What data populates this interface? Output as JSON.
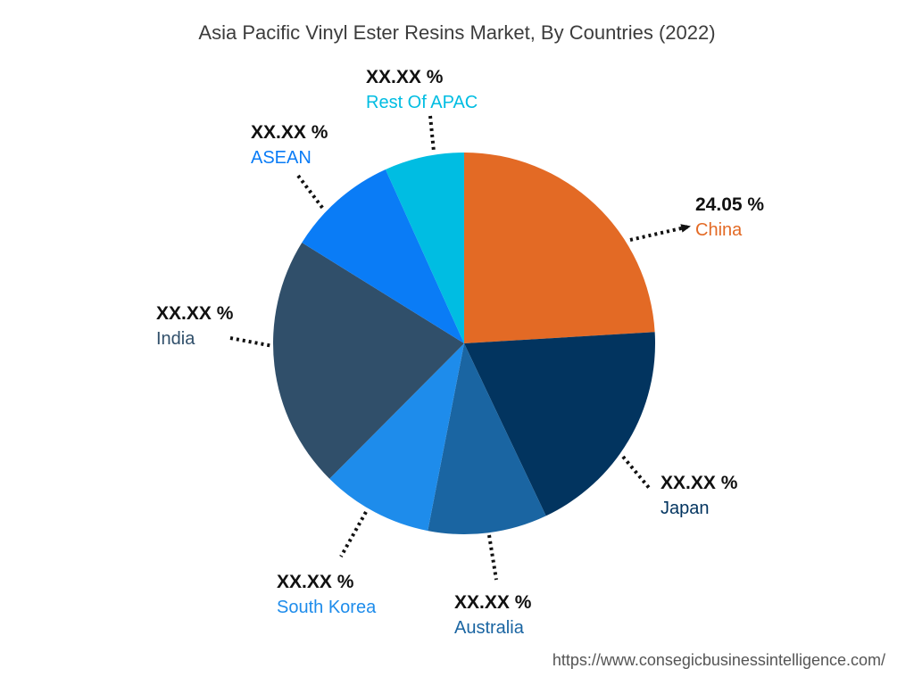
{
  "chart_data": {
    "type": "pie",
    "title": "Asia Pacific Vinyl Ester Resins Market, By Countries (2022)",
    "slices": [
      {
        "label": "China",
        "value": 24.05,
        "display": "24.05 %",
        "color": "#E36A25"
      },
      {
        "label": "Japan",
        "value": 18.9,
        "display": "XX.XX %",
        "color": "#02345F"
      },
      {
        "label": "Australia",
        "value": 10.1,
        "display": "XX.XX %",
        "color": "#1A65A2"
      },
      {
        "label": "South Korea",
        "value": 9.4,
        "display": "XX.XX %",
        "color": "#1E8CEB"
      },
      {
        "label": "India",
        "value": 21.4,
        "display": "XX.XX %",
        "color": "#304F6A"
      },
      {
        "label": "ASEAN",
        "value": 9.4,
        "display": "XX.XX %",
        "color": "#0A7CF6"
      },
      {
        "label": "Rest Of APAC",
        "value": 6.75,
        "display": "XX.XX %",
        "color": "#00BDE2"
      }
    ],
    "label_colors": {
      "China": "#E36A25",
      "Japan": "#02345F",
      "Australia": "#1A65A2",
      "South Korea": "#1E8CEB",
      "India": "#304F6A",
      "ASEAN": "#0A7CF6",
      "Rest Of APAC": "#00BDE2"
    }
  },
  "source_url": "https://www.consegicbusinessintelligence.com/"
}
